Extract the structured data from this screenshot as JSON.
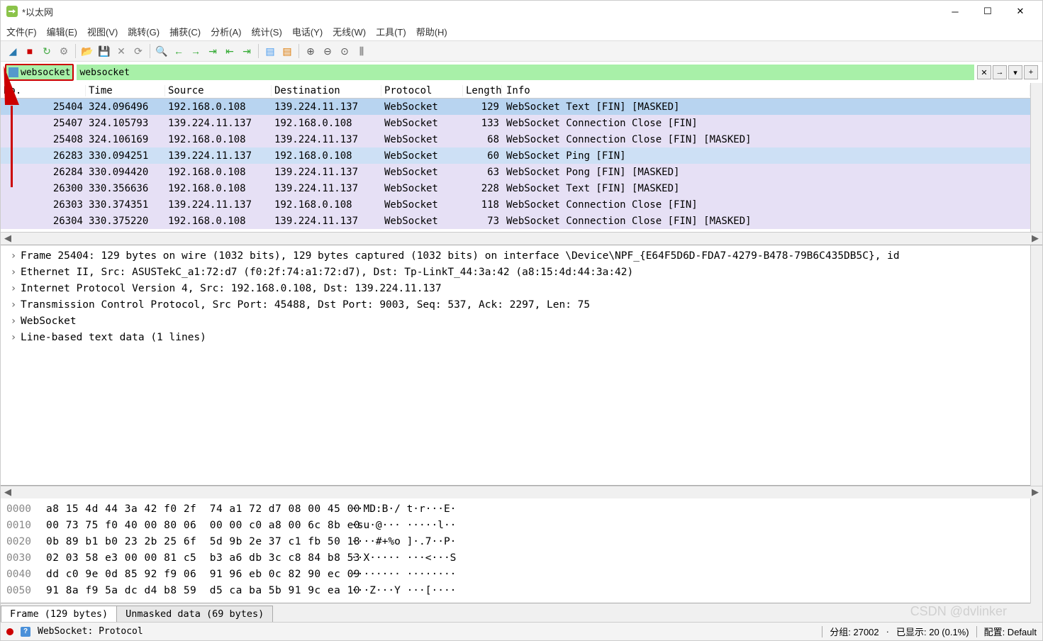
{
  "title": "*以太网",
  "menus": [
    "文件(F)",
    "编辑(E)",
    "视图(V)",
    "跳转(G)",
    "捕获(C)",
    "分析(A)",
    "统计(S)",
    "电话(Y)",
    "无线(W)",
    "工具(T)",
    "帮助(H)"
  ],
  "filter_value": "websocket",
  "columns": [
    "No.",
    "Time",
    "Source",
    "Destination",
    "Protocol",
    "Length",
    "Info"
  ],
  "row_colors": {
    "sel": "#b8d6f5",
    "lav": "#e6e0f5",
    "lav2": "#e6e0f5"
  },
  "packets": [
    {
      "no": "25404",
      "time": "324.096496",
      "src": "192.168.0.108",
      "dst": "139.224.11.137",
      "proto": "WebSocket",
      "len": "129",
      "info": "WebSocket Text [FIN] [MASKED]",
      "bg": "#b8d4f0",
      "info_bg": "#b8d4f0"
    },
    {
      "no": "25407",
      "time": "324.105793",
      "src": "139.224.11.137",
      "dst": "192.168.0.108",
      "proto": "WebSocket",
      "len": "133",
      "info": "WebSocket Connection Close [FIN]",
      "bg": "#e6e0f5"
    },
    {
      "no": "25408",
      "time": "324.106169",
      "src": "192.168.0.108",
      "dst": "139.224.11.137",
      "proto": "WebSocket",
      "len": "68",
      "info": "WebSocket Connection Close [FIN] [MASKED]",
      "bg": "#e6e0f5"
    },
    {
      "no": "26283",
      "time": "330.094251",
      "src": "139.224.11.137",
      "dst": "192.168.0.108",
      "proto": "WebSocket",
      "len": "60",
      "info": "WebSocket Ping [FIN]",
      "bg": "#cde0f5"
    },
    {
      "no": "26284",
      "time": "330.094420",
      "src": "192.168.0.108",
      "dst": "139.224.11.137",
      "proto": "WebSocket",
      "len": "63",
      "info": "WebSocket Pong [FIN] [MASKED]",
      "bg": "#e6e0f5"
    },
    {
      "no": "26300",
      "time": "330.356636",
      "src": "192.168.0.108",
      "dst": "139.224.11.137",
      "proto": "WebSocket",
      "len": "228",
      "info": "WebSocket Text [FIN] [MASKED]",
      "bg": "#e6e0f5"
    },
    {
      "no": "26303",
      "time": "330.374351",
      "src": "139.224.11.137",
      "dst": "192.168.0.108",
      "proto": "WebSocket",
      "len": "118",
      "info": "WebSocket Connection Close [FIN]",
      "bg": "#e6e0f5"
    },
    {
      "no": "26304",
      "time": "330.375220",
      "src": "192.168.0.108",
      "dst": "139.224.11.137",
      "proto": "WebSocket",
      "len": "73",
      "info": "WebSocket Connection Close [FIN] [MASKED]",
      "bg": "#e6e0f5"
    }
  ],
  "details": [
    "Frame 25404: 129 bytes on wire (1032 bits), 129 bytes captured (1032 bits) on interface \\Device\\NPF_{E64F5D6D-FDA7-4279-B478-79B6C435DB5C}, id",
    "Ethernet II, Src: ASUSTekC_a1:72:d7 (f0:2f:74:a1:72:d7), Dst: Tp-LinkT_44:3a:42 (a8:15:4d:44:3a:42)",
    "Internet Protocol Version 4, Src: 192.168.0.108, Dst: 139.224.11.137",
    "Transmission Control Protocol, Src Port: 45488, Dst Port: 9003, Seq: 537, Ack: 2297, Len: 75",
    "WebSocket",
    "Line-based text data (1 lines)"
  ],
  "hex": [
    {
      "off": "0000",
      "b": "a8 15 4d 44 3a 42 f0 2f  74 a1 72 d7 08 00 45 00",
      "a": "··MD:B·/ t·r···E·"
    },
    {
      "off": "0010",
      "b": "00 73 75 f0 40 00 80 06  00 00 c0 a8 00 6c 8b e0",
      "a": "·su·@··· ·····l··"
    },
    {
      "off": "0020",
      "b": "0b 89 b1 b0 23 2b 25 6f  5d 9b 2e 37 c1 fb 50 18",
      "a": "····#+%o ]·.7··P·"
    },
    {
      "off": "0030",
      "b": "02 03 58 e3 00 00 81 c5  b3 a6 db 3c c8 84 b8 53",
      "a": "··X····· ···<···S"
    },
    {
      "off": "0040",
      "b": "dd c0 9e 0d 85 92 f9 06  91 96 eb 0c 82 90 ec 09",
      "a": "········ ········"
    },
    {
      "off": "0050",
      "b": "91 8a f9 5a dc d4 b8 59  d5 ca ba 5b 91 9c ea 10",
      "a": "···Z···Y ···[····"
    }
  ],
  "tabs": [
    "Frame (129 bytes)",
    "Unmasked data (69 bytes)"
  ],
  "status_text": "WebSocket: Protocol",
  "status_groups": "分组: 27002",
  "status_shown": "已显示: 20 (0.1%)",
  "status_profile": "配置: Default",
  "watermark": "CSDN @dvlinker"
}
